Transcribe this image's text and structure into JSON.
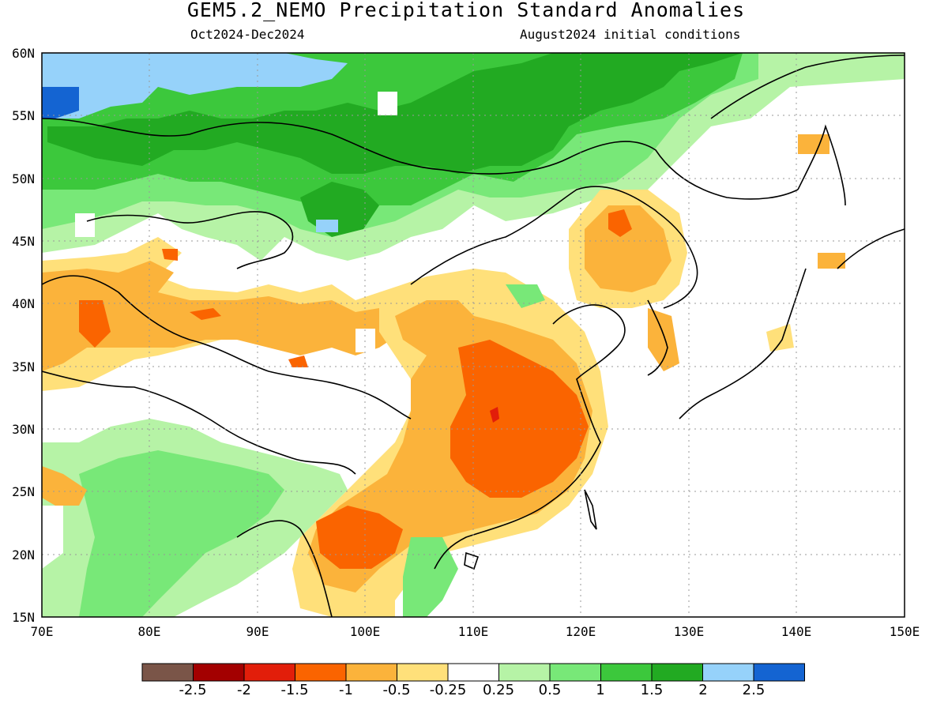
{
  "title": "GEM5.2_NEMO Precipitation Standard Anomalies",
  "subtitle_left": "Oct2024-Dec2024",
  "subtitle_right": "August2024 initial conditions",
  "lat_labels": [
    "60N",
    "55N",
    "50N",
    "45N",
    "40N",
    "35N",
    "30N",
    "25N",
    "20N",
    "15N"
  ],
  "lon_labels": [
    "70E",
    "80E",
    "90E",
    "100E",
    "110E",
    "120E",
    "130E",
    "140E",
    "150E"
  ],
  "colorbar": {
    "colors": [
      "#7a5548",
      "#a30000",
      "#e21e0a",
      "#fa6400",
      "#fbb33b",
      "#ffe07a",
      "#ffffff",
      "#b6f3a6",
      "#78e878",
      "#3cc83c",
      "#22aa22",
      "#96d2fa",
      "#1464d2"
    ],
    "labels": [
      "-2.5",
      "-2",
      "-1.5",
      "-1",
      "-0.5",
      "-0.25",
      "0.25",
      "0.5",
      "1",
      "1.5",
      "2",
      "2.5"
    ]
  }
}
